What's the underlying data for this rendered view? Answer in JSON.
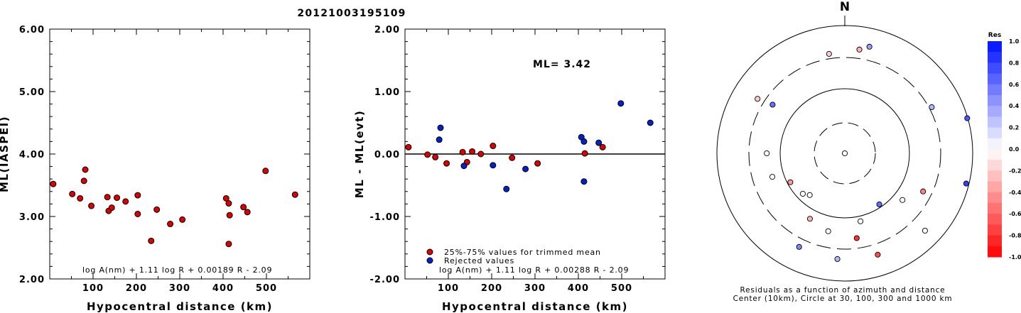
{
  "title": "20121003195109",
  "colors": {
    "red": "#dd0000",
    "blue": "#0022cc"
  },
  "chart_data": [
    {
      "type": "scatter",
      "name": "ml-vs-distance",
      "ylabel": "ML(IASPEI)",
      "xlabel": "Hypocentral distance (km)",
      "xlim": [
        0,
        600
      ],
      "ylim": [
        2.0,
        6.0
      ],
      "x_ticks": [
        "100",
        "200",
        "300",
        "400",
        "500"
      ],
      "y_ticks": [
        "2.00",
        "3.00",
        "4.00",
        "5.00",
        "6.00"
      ],
      "formula": "log A(nm) + 1.11 log R + 0.00189 R - 2.09",
      "points": [
        [
          8,
          3.52
        ],
        [
          52,
          3.36
        ],
        [
          70,
          3.29
        ],
        [
          79,
          3.57
        ],
        [
          82,
          3.75
        ],
        [
          96,
          3.17
        ],
        [
          133,
          3.31
        ],
        [
          136,
          3.09
        ],
        [
          143,
          3.14
        ],
        [
          155,
          3.3
        ],
        [
          175,
          3.24
        ],
        [
          203,
          3.34
        ],
        [
          203,
          3.04
        ],
        [
          234,
          2.61
        ],
        [
          247,
          3.11
        ],
        [
          278,
          2.88
        ],
        [
          306,
          2.95
        ],
        [
          407,
          3.29
        ],
        [
          413,
          3.21
        ],
        [
          415,
          3.02
        ],
        [
          413,
          2.56
        ],
        [
          447,
          3.15
        ],
        [
          456,
          3.07
        ],
        [
          498,
          3.73
        ],
        [
          566,
          3.35
        ]
      ]
    },
    {
      "type": "scatter",
      "name": "residuals-vs-distance",
      "ylabel": "ML - ML(evt)",
      "xlabel": "Hypocentral distance (km)",
      "xlim": [
        0,
        600
      ],
      "ylim": [
        -2.0,
        2.0
      ],
      "x_ticks": [
        "100",
        "200",
        "300",
        "400",
        "500"
      ],
      "y_ticks": [
        "-2.00",
        "-1.00",
        "0.00",
        "1.00",
        "2.00"
      ],
      "ml_label": "ML= 3.42",
      "formula": "log A(nm) + 1.11 log R + 0.00288 R - 2.09",
      "legend": [
        {
          "label": "25%-75% values for trimmed mean",
          "color": "red"
        },
        {
          "label": "Rejected values",
          "color": "blue"
        }
      ],
      "series": [
        {
          "name": "25%-75% values for trimmed mean",
          "points": [
            [
              8,
              0.11
            ],
            [
              52,
              -0.01
            ],
            [
              70,
              -0.05
            ],
            [
              96,
              -0.15
            ],
            [
              133,
              0.03
            ],
            [
              143,
              -0.13
            ],
            [
              155,
              0.04
            ],
            [
              175,
              0.0
            ],
            [
              203,
              0.13
            ],
            [
              247,
              -0.06
            ],
            [
              306,
              -0.15
            ],
            [
              415,
              0.01
            ],
            [
              456,
              0.11
            ]
          ]
        },
        {
          "name": "Rejected values",
          "points": [
            [
              79,
              0.23
            ],
            [
              82,
              0.42
            ],
            [
              136,
              -0.19
            ],
            [
              203,
              -0.18
            ],
            [
              234,
              -0.56
            ],
            [
              278,
              -0.24
            ],
            [
              407,
              0.27
            ],
            [
              413,
              0.2
            ],
            [
              413,
              -0.44
            ],
            [
              447,
              0.18
            ],
            [
              498,
              0.81
            ],
            [
              566,
              0.5
            ]
          ]
        }
      ]
    },
    {
      "type": "polar",
      "name": "residual-azimuth-map",
      "north_label": "N",
      "caption_line1": "Residuals as a function of azimuth and distance",
      "caption_line2": "Center (10km), Circle at 30, 100, 300 and 1000 km",
      "colorbar_title": "Res",
      "colorbar_ticks": [
        "1.0",
        "0.8",
        "0.6",
        "0.4",
        "0.2",
        "0.0",
        "-0.2",
        "-0.4",
        "-0.6",
        "-0.8",
        "-1.0"
      ],
      "points": [
        {
          "az": 0,
          "dist": 10,
          "res": 0.0
        },
        {
          "az": 13,
          "dist": 500,
          "res": 0.4
        },
        {
          "az": 8,
          "dist": 420,
          "res": -0.3
        },
        {
          "az": 351,
          "dist": 360,
          "res": -0.2
        },
        {
          "az": 302,
          "dist": 390,
          "res": -0.2
        },
        {
          "az": 304,
          "dist": 220,
          "res": 0.6
        },
        {
          "az": 270,
          "dist": 160,
          "res": 0.0
        },
        {
          "az": 62,
          "dist": 330,
          "res": 0.3
        },
        {
          "az": 74,
          "dist": 980,
          "res": 0.7
        },
        {
          "az": 104,
          "dist": 900,
          "res": 0.8
        },
        {
          "az": 116,
          "dist": 220,
          "res": -0.5
        },
        {
          "az": 134,
          "dist": 540,
          "res": 0.0
        },
        {
          "az": 129,
          "dist": 140,
          "res": 0.0
        },
        {
          "az": 146,
          "dist": 90,
          "res": 0.6
        },
        {
          "az": 167,
          "dist": 120,
          "res": 0.0
        },
        {
          "az": 172,
          "dist": 210,
          "res": -0.8
        },
        {
          "az": 162,
          "dist": 450,
          "res": -0.7
        },
        {
          "az": 184,
          "dist": 440,
          "res": 0.3
        },
        {
          "az": 192,
          "dist": 170,
          "res": 0.0
        },
        {
          "az": 206,
          "dist": 410,
          "res": 0.5
        },
        {
          "az": 208,
          "dist": 140,
          "res": -0.3
        },
        {
          "az": 226,
          "dist": 80,
          "res": 0.0
        },
        {
          "az": 220,
          "dist": 70,
          "res": 0.0
        },
        {
          "az": 242,
          "dist": 90,
          "res": -0.4
        },
        {
          "az": 252,
          "dist": 150,
          "res": 0.0
        }
      ]
    }
  ]
}
